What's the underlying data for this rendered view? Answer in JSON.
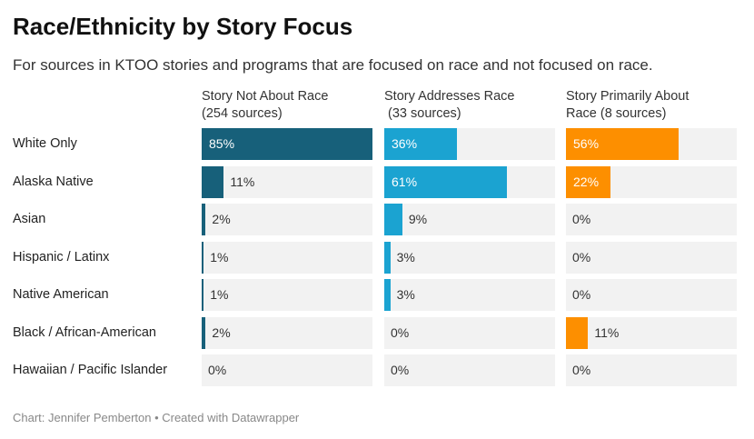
{
  "title": "Race/Ethnicity by Story Focus",
  "subtitle": "For sources in KTOO stories and programs that are focused on race and not focused on race.",
  "footer": "Chart: Jennifer Pemberton • Created with Datawrapper",
  "chart_data": {
    "type": "bar",
    "title": "Race/Ethnicity by Story Focus",
    "categories": [
      "White Only",
      "Alaska Native",
      "Asian",
      "Hispanic / Latinx",
      "Native American",
      "Black / African-American",
      "Hawaiian / Pacific Islander"
    ],
    "xlim": [
      0,
      85
    ],
    "grid": false,
    "series": [
      {
        "name": "Story Not About Race\n(254 sources)",
        "color": "#17607a",
        "values": [
          85,
          11,
          2,
          1,
          1,
          2,
          0
        ],
        "labels": [
          "85%",
          "11%",
          "2%",
          "1%",
          "1%",
          "2%",
          "0%"
        ]
      },
      {
        "name": "Story Addresses Race\n (33 sources)",
        "color": "#1ba3d1",
        "values": [
          36,
          61,
          9,
          3,
          3,
          0,
          0
        ],
        "labels": [
          "36%",
          "61%",
          "9%",
          "3%",
          "3%",
          "0%",
          "0%"
        ]
      },
      {
        "name": "Story Primarily About\nRace (8 sources)",
        "color": "#fd8f00",
        "values": [
          56,
          22,
          0,
          0,
          0,
          11,
          0
        ],
        "labels": [
          "56%",
          "22%",
          "0%",
          "0%",
          "0%",
          "11%",
          "0%"
        ]
      }
    ]
  }
}
